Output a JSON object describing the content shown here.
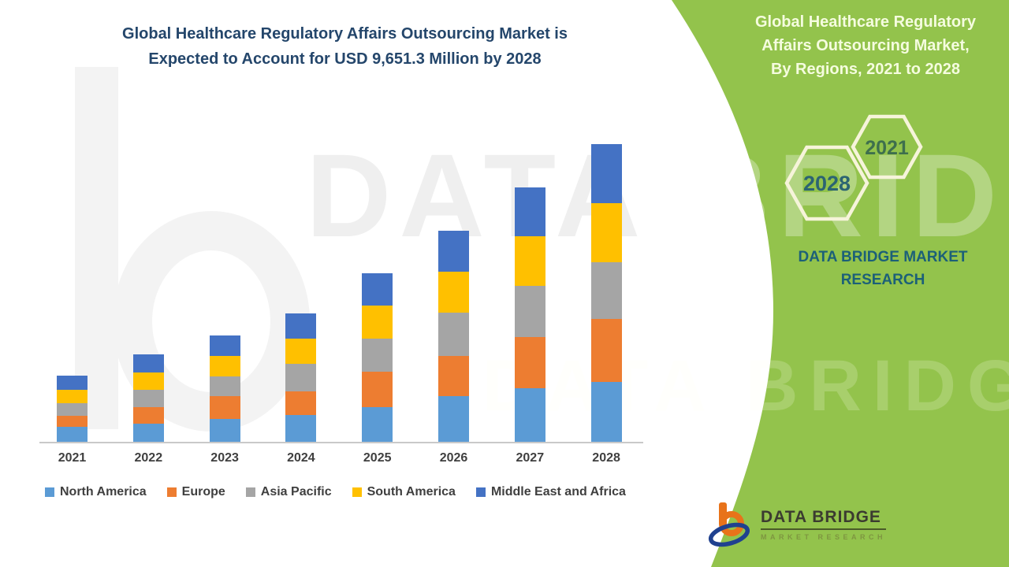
{
  "header": {
    "title_line1": "Global Healthcare Regulatory Affairs Outsourcing Market is",
    "title_line2": "Expected to Account for USD 9,651.3 Million by 2028"
  },
  "side_panel": {
    "title_line1": "Global Healthcare Regulatory",
    "title_line2": "Affairs Outsourcing Market,",
    "title_line3": "By Regions, 2021 to 2028",
    "hexagon_small": "2021",
    "hexagon_large": "2028",
    "brand_line1": "DATA BRIDGE MARKET",
    "brand_line2": "RESEARCH"
  },
  "footer_logo": {
    "name": "DATA BRIDGE",
    "tagline": "MARKET RESEARCH"
  },
  "watermark": {
    "text": "DATA BRIDGE"
  },
  "colors": {
    "panel_background": "#93C34C",
    "title_text": "#24466B",
    "panel_text": "#F5FCDF",
    "brand_text": "#1C6078",
    "hexagon_outline": "#F6F4DA",
    "hex_2021_text": "#3E6F4D",
    "hex_2028_text": "#2C6472",
    "axis_label": "#3F3F3F",
    "legend_text": "#3F3F3F",
    "axis_line": "#C9C9C9",
    "logo_orange": "#E8731A",
    "logo_blue": "#20418F",
    "logo_name_text": "#3B3B30",
    "logo_underline": "#4A5A28",
    "logo_tagline_text": "#7E9640"
  },
  "chart_data": {
    "type": "bar",
    "stacked": true,
    "title": "Global Healthcare Regulatory Affairs Outsourcing Market, By Regions, 2021 to 2028",
    "unit": "USD Million",
    "categories": [
      "2021",
      "2022",
      "2023",
      "2024",
      "2025",
      "2026",
      "2027",
      "2028"
    ],
    "series": [
      {
        "name": "North America",
        "color": "#5B9BD5",
        "values": [
          485,
          587,
          740,
          868,
          1123,
          1481,
          1736,
          1940
        ]
      },
      {
        "name": "Europe",
        "color": "#ED7D31",
        "values": [
          357,
          536,
          740,
          766,
          1149,
          1302,
          1660,
          2042
        ]
      },
      {
        "name": "Asia Pacific",
        "color": "#A5A5A5",
        "values": [
          409,
          562,
          638,
          894,
          1072,
          1404,
          1660,
          1838
        ]
      },
      {
        "name": "South America",
        "color": "#FFC000",
        "values": [
          434,
          562,
          664,
          817,
          1072,
          1328,
          1609,
          1915
        ]
      },
      {
        "name": "Middle East and Africa",
        "color": "#4472C4",
        "values": [
          460,
          587,
          664,
          817,
          1047,
          1328,
          1583,
          1916.3
        ]
      }
    ],
    "totals": [
      2145,
      2834,
      3446,
      4162,
      5463,
      6843,
      8248,
      9651.3
    ],
    "highlight_total": "USD 9,651.3 Million by 2028",
    "legend_position": "bottom",
    "gridlines": false,
    "value_axis_visible": false
  }
}
